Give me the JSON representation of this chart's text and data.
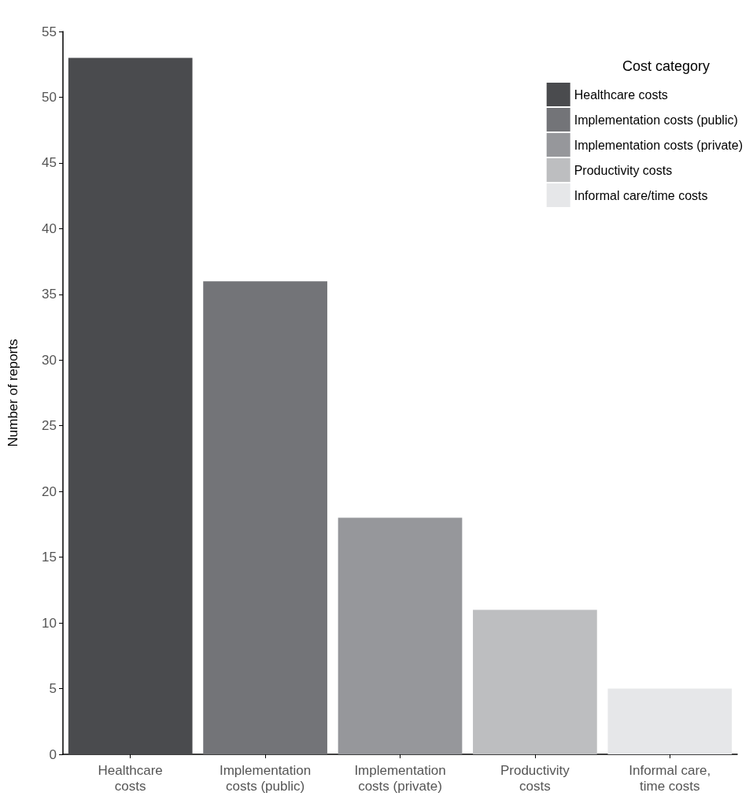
{
  "chart_data": {
    "type": "bar",
    "xlabel": null,
    "ylabel": "Number of reports",
    "legend_title": "Cost category",
    "categories": [
      "Healthcare\ncosts",
      "Implementation\ncosts (public)",
      "Implementation\ncosts (private)",
      "Productivity\ncosts",
      "Informal care,\ntime costs"
    ],
    "series": [
      {
        "name": "Healthcare costs",
        "color": "#4a4b4e",
        "values": [
          53,
          null,
          null,
          null,
          null
        ]
      },
      {
        "name": "Implementation costs (public)",
        "color": "#737478",
        "values": [
          null,
          36,
          null,
          null,
          null
        ]
      },
      {
        "name": "Implementation costs (private)",
        "color": "#96979b",
        "values": [
          null,
          null,
          18,
          null,
          null
        ]
      },
      {
        "name": "Productivity costs",
        "color": "#bdbec0",
        "values": [
          null,
          null,
          null,
          11,
          null
        ]
      },
      {
        "name": "Informal care/time costs",
        "color": "#e6e7e9",
        "values": [
          null,
          null,
          null,
          null,
          5
        ]
      }
    ],
    "ylim": [
      0,
      55
    ],
    "yticks": [
      0,
      5,
      10,
      15,
      20,
      25,
      30,
      35,
      40,
      45,
      50,
      55
    ],
    "grid": false,
    "legend": "top right"
  }
}
